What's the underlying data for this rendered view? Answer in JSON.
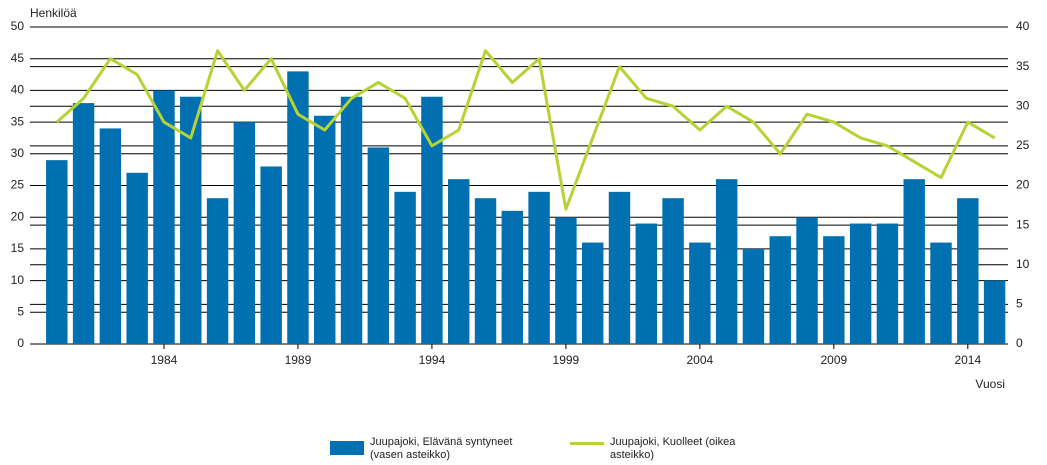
{
  "chart_data": {
    "type": "bar_line",
    "y_label": "Henkilöä",
    "x_label": "Vuosi",
    "x": [
      1980,
      1981,
      1982,
      1983,
      1984,
      1985,
      1986,
      1987,
      1988,
      1989,
      1990,
      1991,
      1992,
      1993,
      1994,
      1995,
      1996,
      1997,
      1998,
      1999,
      2000,
      2001,
      2002,
      2003,
      2004,
      2005,
      2006,
      2007,
      2008,
      2009,
      2010,
      2011,
      2012,
      2013,
      2014,
      2015
    ],
    "xlim": [
      1979,
      2015.5
    ],
    "xticks": [
      1984,
      1989,
      1994,
      1999,
      2004,
      2009,
      2014
    ],
    "ylim": [
      0,
      50
    ],
    "yticks": [
      0,
      5,
      10,
      15,
      20,
      25,
      30,
      35,
      40,
      45,
      50
    ],
    "y2lim": [
      0,
      40
    ],
    "y2ticks": [
      0,
      5,
      10,
      15,
      20,
      25,
      30,
      35,
      40
    ],
    "grid": true,
    "series": [
      {
        "name": "Juupajoki, Elävänä syntyneet (vasen asteikko)",
        "type": "bar",
        "color": "#0070b0",
        "values": [
          29,
          38,
          34,
          27,
          40,
          39,
          23,
          35,
          28,
          43,
          36,
          39,
          31,
          24,
          39,
          26,
          23,
          21,
          24,
          20,
          16,
          24,
          19,
          23,
          16,
          26,
          15,
          17,
          20,
          17,
          19,
          19,
          26,
          16,
          23,
          10
        ]
      },
      {
        "name": "Juupajoki, Kuolleet (oikea asteikko)",
        "type": "line",
        "axis": "y2",
        "color": "#b5d334",
        "values": [
          28,
          31,
          36,
          34,
          28,
          26,
          37,
          32,
          36,
          29,
          27,
          31,
          33,
          31,
          25,
          27,
          37,
          33,
          36,
          17,
          26,
          35,
          31,
          30,
          27,
          30,
          28,
          24,
          29,
          28,
          26,
          25,
          23,
          21,
          28,
          26
        ]
      }
    ]
  }
}
